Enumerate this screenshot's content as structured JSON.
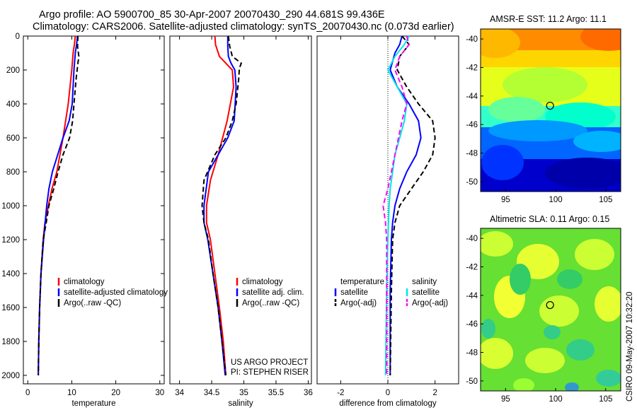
{
  "title_lines": [
    "Argo profile: AO 5900700_85 30-Apr-2007 20070430_290 44.681S 99.436E",
    "Climatology: CARS2006. Satellite-adjusted climatology: synTS_20070430.nc (0.073d earlier)"
  ],
  "colors": {
    "climatology": "#ff0000",
    "satellite": "#0000ff",
    "argo": "#000000",
    "satellite_salinity": "#00e5e5",
    "argo_adj_salinity": "#ff00ff"
  },
  "side_text": "CSIRO 09-May-2007 10:32:20",
  "chart_data": [
    {
      "type": "line",
      "xlabel": "temperature",
      "ylabel": "",
      "xlim": [
        -1,
        31
      ],
      "ylim": [
        2050,
        0
      ],
      "xticks": [
        0,
        10,
        20,
        30
      ],
      "yticks": [
        0,
        200,
        400,
        600,
        800,
        1000,
        1200,
        1400,
        1600,
        1800,
        2000
      ],
      "legend": [
        "climatology",
        "satellite-adjusted climatology",
        "Argo(..raw -QC)"
      ],
      "series": [
        {
          "name": "climatology",
          "color": "red",
          "dash": "solid",
          "x": [
            10.8,
            10.6,
            10.3,
            10.0,
            9.2,
            8.0,
            6.6,
            5.5,
            4.7,
            3.9,
            3.5,
            3.0,
            2.7,
            2.5,
            2.4
          ],
          "y": [
            0,
            50,
            100,
            200,
            400,
            600,
            800,
            900,
            1000,
            1100,
            1200,
            1400,
            1600,
            1800,
            2000
          ]
        },
        {
          "name": "satellite-adjusted climatology",
          "color": "blue",
          "dash": "solid",
          "x": [
            11.3,
            11.1,
            10.8,
            10.5,
            10.1,
            9.4,
            8.0,
            6.8,
            5.6,
            4.8,
            4.3,
            3.6,
            3.0,
            2.7,
            2.5,
            2.4
          ],
          "y": [
            0,
            50,
            100,
            200,
            400,
            500,
            600,
            700,
            800,
            900,
            1000,
            1200,
            1400,
            1600,
            1800,
            2000
          ]
        },
        {
          "name": "Argo(..raw -QC)",
          "color": "black",
          "dash": "dashed",
          "x": [
            11.4,
            11.3,
            11.6,
            11.4,
            11.0,
            10.5,
            10.2,
            9.5,
            8.0,
            6.9,
            5.9,
            4.8,
            4.2,
            3.5,
            3.0,
            2.7,
            2.5,
            2.4
          ],
          "y": [
            0,
            60,
            120,
            160,
            250,
            400,
            500,
            600,
            700,
            800,
            900,
            1000,
            1100,
            1200,
            1400,
            1600,
            1800,
            2000
          ]
        }
      ]
    },
    {
      "type": "line",
      "xlabel": "salinity",
      "ylabel": "",
      "xlim": [
        33.85,
        36.05
      ],
      "ylim": [
        2050,
        0
      ],
      "xticks": [
        34,
        34.5,
        35,
        35.5,
        36
      ],
      "yticks": [],
      "legend": [
        "climatology",
        "satellite adj. clim.",
        "Argo(..raw -QC)"
      ],
      "annotations": [
        "US ARGO PROJECT",
        "PI: STEPHEN RISER"
      ],
      "series": [
        {
          "name": "climatology",
          "color": "red",
          "dash": "solid",
          "x": [
            34.55,
            34.56,
            34.62,
            34.72,
            34.82,
            34.84,
            34.74,
            34.6,
            34.48,
            34.42,
            34.42,
            34.48,
            34.55,
            34.62,
            34.68,
            34.72
          ],
          "y": [
            0,
            50,
            120,
            160,
            200,
            300,
            500,
            700,
            850,
            1000,
            1100,
            1200,
            1400,
            1600,
            1800,
            2000
          ]
        },
        {
          "name": "satellite adj. clim.",
          "color": "blue",
          "dash": "solid",
          "x": [
            34.75,
            34.75,
            34.76,
            34.8,
            34.86,
            34.88,
            34.85,
            34.75,
            34.6,
            34.45,
            34.38,
            34.38,
            34.44,
            34.52,
            34.6,
            34.66,
            34.71
          ],
          "y": [
            0,
            60,
            120,
            160,
            200,
            300,
            500,
            600,
            700,
            800,
            1000,
            1100,
            1200,
            1400,
            1600,
            1800,
            2000
          ]
        },
        {
          "name": "Argo(..raw -QC)",
          "color": "black",
          "dash": "dashed",
          "x": [
            34.76,
            34.78,
            34.82,
            34.96,
            34.93,
            34.92,
            34.88,
            34.82,
            34.72,
            34.55,
            34.38,
            34.35,
            34.38,
            34.45,
            34.52,
            34.6,
            34.66,
            34.72
          ],
          "y": [
            0,
            60,
            120,
            160,
            190,
            250,
            400,
            500,
            600,
            700,
            850,
            1000,
            1100,
            1200,
            1400,
            1600,
            1800,
            2000
          ]
        }
      ]
    },
    {
      "type": "line",
      "xlabel": "difference from climatology",
      "ylabel": "",
      "xlim": [
        -3,
        3
      ],
      "ylim": [
        2050,
        0
      ],
      "xticks": [
        -2,
        0,
        2
      ],
      "yticks": [],
      "zero_line": "dotted",
      "legend_groups": [
        {
          "header": "temperature",
          "items": [
            "satellite",
            "Argo(-adj)"
          ]
        },
        {
          "header": "salinity",
          "items": [
            "satellite",
            "Argo(-adj)"
          ]
        }
      ],
      "series": [
        {
          "name": "temperature satellite",
          "color": "blue",
          "dash": "solid",
          "x": [
            0.6,
            0.5,
            0.3,
            0.1,
            0.4,
            0.9,
            1.3,
            1.4,
            1.2,
            0.8,
            0.5,
            0.3,
            0.2,
            0.15,
            0.1,
            0.1
          ],
          "y": [
            0,
            50,
            100,
            200,
            300,
            400,
            500,
            600,
            700,
            800,
            900,
            1000,
            1100,
            1200,
            1500,
            2000
          ]
        },
        {
          "name": "temperature Argo(-adj)",
          "color": "black",
          "dash": "dashed",
          "x": [
            0.6,
            0.9,
            0.5,
            0.4,
            0.8,
            1.3,
            1.9,
            2.0,
            1.9,
            1.5,
            1.0,
            0.5,
            0.3,
            0.2,
            0.15,
            0.1
          ],
          "y": [
            0,
            50,
            120,
            200,
            300,
            400,
            500,
            600,
            700,
            800,
            900,
            1000,
            1100,
            1200,
            1500,
            2000
          ]
        },
        {
          "name": "salinity satellite",
          "color": "cyan",
          "dash": "solid",
          "x": [
            0.9,
            0.7,
            0.3,
            0.0,
            0.4,
            0.8,
            0.7,
            0.5,
            0.3,
            0.2,
            0.1,
            0.05,
            0.0,
            -0.05,
            -0.1
          ],
          "y": [
            0,
            50,
            120,
            200,
            300,
            400,
            500,
            600,
            700,
            800,
            900,
            1000,
            1200,
            1500,
            2000
          ]
        },
        {
          "name": "salinity Argo(-adj)",
          "color": "magenta",
          "dash": "dashed",
          "x": [
            0.8,
            0.9,
            0.5,
            0.3,
            0.6,
            0.8,
            0.6,
            0.3,
            0.0,
            -0.2,
            -0.1,
            -0.05,
            -0.05,
            -0.05
          ],
          "y": [
            0,
            50,
            120,
            200,
            300,
            400,
            500,
            700,
            900,
            1000,
            1100,
            1200,
            1500,
            2000
          ]
        }
      ]
    },
    {
      "type": "heatmap",
      "title": "AMSR-E SST: 11.2 Argo: 11.1",
      "xlim": [
        92.5,
        106.5
      ],
      "ylim": [
        -50.7,
        -39.3
      ],
      "xticks": [
        95,
        100,
        105
      ],
      "yticks": [
        -40,
        -42,
        -44,
        -46,
        -48,
        -50
      ],
      "marker": {
        "x": 99.44,
        "y": -44.68
      }
    },
    {
      "type": "heatmap",
      "title": "Altimetric SLA: 0.11  Argo: 0.15",
      "xlim": [
        92.5,
        106.5
      ],
      "ylim": [
        -50.7,
        -39.3
      ],
      "xticks": [
        95,
        100,
        105
      ],
      "yticks": [
        -40,
        -42,
        -44,
        -46,
        -48,
        -50
      ],
      "marker": {
        "x": 99.44,
        "y": -44.68
      }
    }
  ]
}
